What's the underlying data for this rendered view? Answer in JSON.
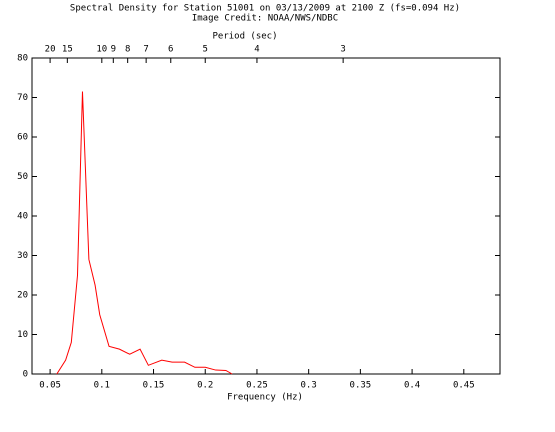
{
  "chart_data": {
    "type": "line",
    "title": "Spectral Density for Station 51001 on 03/13/2009 at 2100 Z (fs=0.094 Hz)",
    "subtitle": "Image Credit: NOAA/NWS/NDBC",
    "x_label": "Frequency (Hz)",
    "x2_label": "Period (sec)",
    "x2_scale": "reciprocal",
    "x": [
      0.0565,
      0.065,
      0.0705,
      0.0765,
      0.0813,
      0.0875,
      0.0935,
      0.098,
      0.107,
      0.117,
      0.127,
      0.137,
      0.145,
      0.158,
      0.168,
      0.18,
      0.19,
      0.2,
      0.21,
      0.22,
      0.226
    ],
    "series": [
      {
        "color": "#ff0000",
        "values": [
          0,
          3.5,
          8,
          25,
          71.5,
          29,
          22.5,
          15,
          7,
          6.3,
          5,
          6.3,
          2.2,
          3.5,
          3,
          3,
          1.7,
          1.7,
          1,
          0.9,
          0
        ]
      }
    ],
    "xlim": [
      0.0325,
      0.485
    ],
    "xticks": [
      0.05,
      0.1,
      0.15,
      0.2,
      0.25,
      0.3,
      0.35,
      0.4,
      0.45
    ],
    "x2ticks": [
      20,
      15,
      10,
      9,
      8,
      7,
      6,
      5,
      4,
      3
    ],
    "ylim": [
      0,
      80
    ],
    "yticks": [
      0,
      10,
      20,
      30,
      40,
      50,
      60,
      70,
      80
    ]
  }
}
